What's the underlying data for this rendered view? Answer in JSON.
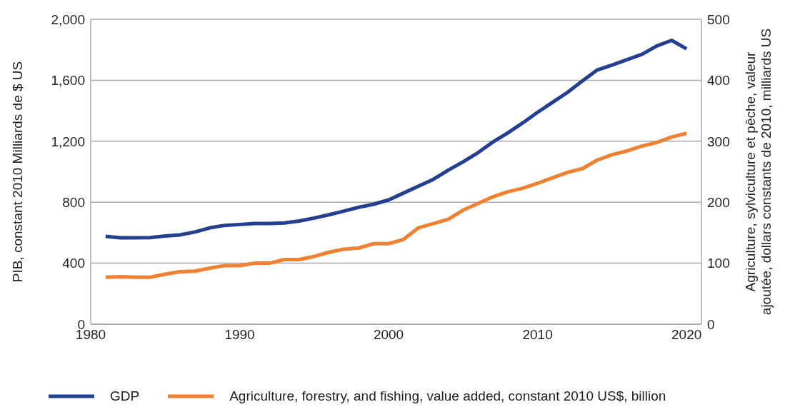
{
  "chart_data": {
    "type": "line",
    "x": [
      1981,
      1982,
      1983,
      1984,
      1985,
      1986,
      1987,
      1988,
      1989,
      1990,
      1991,
      1992,
      1993,
      1994,
      1995,
      1996,
      1997,
      1998,
      1999,
      2000,
      2001,
      2002,
      2003,
      2004,
      2005,
      2006,
      2007,
      2008,
      2009,
      2010,
      2011,
      2012,
      2013,
      2014,
      2015,
      2016,
      2017,
      2018,
      2019,
      2020
    ],
    "series": [
      {
        "name": "GDP",
        "color": "#253f8f",
        "values": [
          576,
          567,
          567,
          568,
          578,
          586,
          605,
          632,
          648,
          654,
          660,
          660,
          664,
          677,
          696,
          718,
          742,
          767,
          787,
          815,
          860,
          905,
          950,
          1010,
          1065,
          1125,
          1195,
          1255,
          1320,
          1390,
          1455,
          1520,
          1595,
          1667,
          1700,
          1735,
          1770,
          1825,
          1862,
          1806
        ]
      },
      {
        "name": "Agriculture, forestry, and fishing, value added, constant 2010 US$, billion",
        "color": "#ef8133",
        "axis": "y2",
        "values": [
          77,
          78,
          77,
          77,
          82,
          86,
          87,
          92,
          96,
          96,
          100,
          100,
          106,
          106,
          111,
          118,
          123,
          125,
          132,
          132,
          139,
          158,
          165,
          172,
          187,
          198,
          209,
          217,
          223,
          231,
          240,
          249,
          255,
          269,
          278,
          284,
          292,
          298,
          307,
          313
        ]
      }
    ],
    "ylabel": "PIB, constant 2010 Milliards de $ US",
    "y2label": "Agriculture, sylviculture et pêche, valeur ajoutée, dollars constants de 2010, milliards US",
    "xlim": [
      1980,
      2021
    ],
    "xticks": [
      1980,
      1990,
      2000,
      2010,
      2020
    ],
    "ylim": [
      0,
      2000
    ],
    "yticks": [
      {
        "value": 0,
        "label": "0"
      },
      {
        "value": 400,
        "label": "400"
      },
      {
        "value": 800,
        "label": "800"
      },
      {
        "value": 1200,
        "label": "1,200"
      },
      {
        "value": 1600,
        "label": "1,600"
      },
      {
        "value": 2000,
        "label": "2,000"
      }
    ],
    "y2lim": [
      0,
      500
    ],
    "y2ticks": [
      0,
      100,
      200,
      300,
      400,
      500
    ],
    "grid": "y",
    "legend": "bottom",
    "marker": "none",
    "line_style": "solid"
  }
}
